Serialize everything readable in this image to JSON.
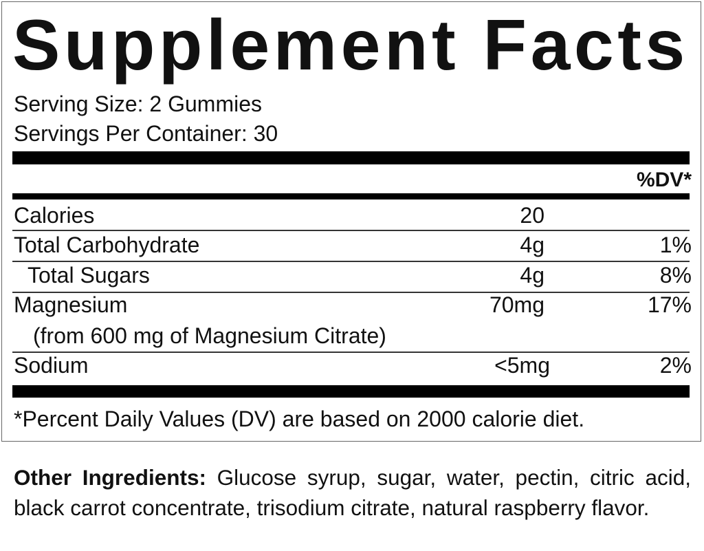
{
  "title": "Supplement Facts",
  "serving_size": "Serving Size: 2 Gummies",
  "servings_per_container": "Servings Per Container: 30",
  "dv_header": "%DV*",
  "rows": [
    {
      "name": "Calories",
      "amount": "20",
      "dv": ""
    },
    {
      "name": "Total Carbohydrate",
      "amount": "4g",
      "dv": "1%"
    },
    {
      "name": "Total Sugars",
      "amount": "4g",
      "dv": "8%"
    },
    {
      "name": "Magnesium",
      "sub": "(from 600 mg of Magnesium Citrate)",
      "amount": "70mg",
      "dv": "17%"
    },
    {
      "name": "Sodium",
      "amount": "<5mg",
      "dv": "2%"
    }
  ],
  "footnote": "*Percent Daily Values (DV) are based on 2000 calorie diet.",
  "other_ingredients": {
    "label": "Other Ingredients:",
    "text": " Glucose syrup, sugar, water, pectin, citric acid, black carrot concentrate, trisodium citrate, natural raspberry flavor."
  }
}
